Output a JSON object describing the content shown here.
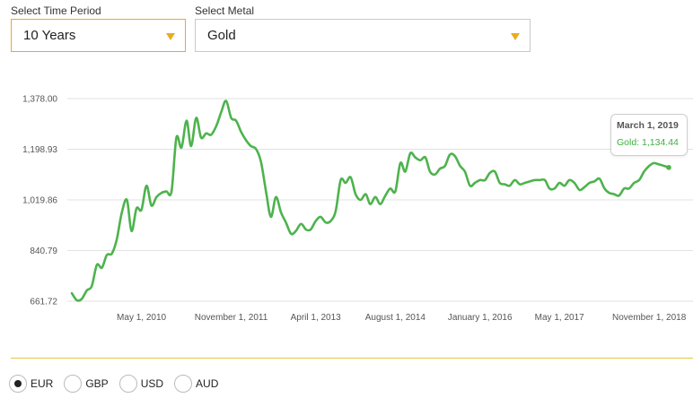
{
  "filters": {
    "period_label": "Select Time Period",
    "period_value": "10 Years",
    "metal_label": "Select Metal",
    "metal_value": "Gold"
  },
  "tooltip": {
    "date": "March 1, 2019",
    "value": "Gold: 1,134.44"
  },
  "currencies": [
    {
      "label": "EUR",
      "selected": true
    },
    {
      "label": "GBP",
      "selected": false
    },
    {
      "label": "USD",
      "selected": false
    },
    {
      "label": "AUD",
      "selected": false
    }
  ],
  "colors": {
    "accent": "#e8ad1e",
    "line": "#4db34d",
    "grid": "#e2e2e2"
  },
  "chart_data": {
    "type": "line",
    "title": "",
    "xlabel": "",
    "ylabel": "",
    "ylim": [
      661.72,
      1378.0
    ],
    "y_ticks": [
      "661.72",
      "840.79",
      "1,019.86",
      "1,198.93",
      "1,378.00"
    ],
    "y_tick_values": [
      661.72,
      840.79,
      1019.86,
      1198.93,
      1378.0
    ],
    "x_tick_labels": [
      "May 1, 2010",
      "November 1, 2011",
      "April 1, 2013",
      "August 1, 2014",
      "January 1, 2016",
      "May 1, 2017",
      "November 1, 2018"
    ],
    "x_tick_dates": [
      "2010-05-01",
      "2011-11-01",
      "2013-04-01",
      "2014-08-01",
      "2016-01-01",
      "2017-05-01",
      "2018-11-01"
    ],
    "grid": true,
    "series": [
      {
        "values": [
          [
            "2009-03-01",
            690
          ],
          [
            "2009-04-01",
            665
          ],
          [
            "2009-05-01",
            670
          ],
          [
            "2009-06-01",
            700
          ],
          [
            "2009-07-01",
            715
          ],
          [
            "2009-08-01",
            790
          ],
          [
            "2009-09-01",
            780
          ],
          [
            "2009-10-01",
            825
          ],
          [
            "2009-11-01",
            830
          ],
          [
            "2009-12-01",
            880
          ],
          [
            "2010-01-01",
            975
          ],
          [
            "2010-02-01",
            1020
          ],
          [
            "2010-03-01",
            910
          ],
          [
            "2010-04-01",
            990
          ],
          [
            "2010-05-01",
            985
          ],
          [
            "2010-06-01",
            1070
          ],
          [
            "2010-07-01",
            1000
          ],
          [
            "2010-08-01",
            1030
          ],
          [
            "2010-09-01",
            1045
          ],
          [
            "2010-10-01",
            1050
          ],
          [
            "2010-11-01",
            1050
          ],
          [
            "2010-12-01",
            1240
          ],
          [
            "2011-01-01",
            1205
          ],
          [
            "2011-02-01",
            1300
          ],
          [
            "2011-03-01",
            1210
          ],
          [
            "2011-04-01",
            1310
          ],
          [
            "2011-05-01",
            1240
          ],
          [
            "2011-06-01",
            1255
          ],
          [
            "2011-07-01",
            1250
          ],
          [
            "2011-08-01",
            1280
          ],
          [
            "2011-09-01",
            1330
          ],
          [
            "2011-10-01",
            1370
          ],
          [
            "2011-11-01",
            1310
          ],
          [
            "2011-12-01",
            1300
          ],
          [
            "2012-01-01",
            1260
          ],
          [
            "2012-02-01",
            1230
          ],
          [
            "2012-03-01",
            1210
          ],
          [
            "2012-04-01",
            1200
          ],
          [
            "2012-05-01",
            1155
          ],
          [
            "2012-06-01",
            1050
          ],
          [
            "2012-07-01",
            960
          ],
          [
            "2012-08-01",
            1030
          ],
          [
            "2012-09-01",
            975
          ],
          [
            "2012-10-01",
            940
          ],
          [
            "2012-11-01",
            900
          ],
          [
            "2012-12-01",
            910
          ],
          [
            "2013-01-01",
            935
          ],
          [
            "2013-02-01",
            915
          ],
          [
            "2013-03-01",
            915
          ],
          [
            "2013-04-01",
            945
          ],
          [
            "2013-05-01",
            960
          ],
          [
            "2013-06-01",
            940
          ],
          [
            "2013-07-01",
            945
          ],
          [
            "2013-08-01",
            980
          ],
          [
            "2013-09-01",
            1090
          ],
          [
            "2013-10-01",
            1080
          ],
          [
            "2013-11-01",
            1100
          ],
          [
            "2013-12-01",
            1040
          ],
          [
            "2014-01-01",
            1020
          ],
          [
            "2014-02-01",
            1040
          ],
          [
            "2014-03-01",
            1005
          ],
          [
            "2014-04-01",
            1030
          ],
          [
            "2014-05-01",
            1005
          ],
          [
            "2014-06-01",
            1035
          ],
          [
            "2014-07-01",
            1060
          ],
          [
            "2014-08-01",
            1050
          ],
          [
            "2014-09-01",
            1150
          ],
          [
            "2014-10-01",
            1120
          ],
          [
            "2014-11-01",
            1185
          ],
          [
            "2014-12-01",
            1170
          ],
          [
            "2015-01-01",
            1160
          ],
          [
            "2015-02-01",
            1170
          ],
          [
            "2015-03-01",
            1120
          ],
          [
            "2015-04-01",
            1110
          ],
          [
            "2015-05-01",
            1130
          ],
          [
            "2015-06-01",
            1140
          ],
          [
            "2015-07-01",
            1180
          ],
          [
            "2015-08-01",
            1175
          ],
          [
            "2015-09-01",
            1140
          ],
          [
            "2015-10-01",
            1120
          ],
          [
            "2015-11-01",
            1070
          ],
          [
            "2015-12-01",
            1080
          ],
          [
            "2016-01-01",
            1090
          ],
          [
            "2016-02-01",
            1090
          ],
          [
            "2016-03-01",
            1115
          ],
          [
            "2016-04-01",
            1120
          ],
          [
            "2016-05-01",
            1080
          ],
          [
            "2016-06-01",
            1075
          ],
          [
            "2016-07-01",
            1070
          ],
          [
            "2016-08-01",
            1090
          ],
          [
            "2016-09-01",
            1075
          ],
          [
            "2016-10-01",
            1080
          ],
          [
            "2016-11-01",
            1085
          ],
          [
            "2016-12-01",
            1090
          ],
          [
            "2017-01-01",
            1090
          ],
          [
            "2017-02-01",
            1090
          ],
          [
            "2017-03-01",
            1060
          ],
          [
            "2017-04-01",
            1060
          ],
          [
            "2017-05-01",
            1080
          ],
          [
            "2017-06-01",
            1070
          ],
          [
            "2017-07-01",
            1090
          ],
          [
            "2017-08-01",
            1080
          ],
          [
            "2017-09-01",
            1055
          ],
          [
            "2017-10-01",
            1065
          ],
          [
            "2017-11-01",
            1080
          ],
          [
            "2017-12-01",
            1085
          ],
          [
            "2018-01-01",
            1095
          ],
          [
            "2018-02-01",
            1060
          ],
          [
            "2018-03-01",
            1045
          ],
          [
            "2018-04-01",
            1040
          ],
          [
            "2018-05-01",
            1035
          ],
          [
            "2018-06-01",
            1060
          ],
          [
            "2018-07-01",
            1060
          ],
          [
            "2018-08-01",
            1080
          ],
          [
            "2018-09-01",
            1090
          ],
          [
            "2018-10-01",
            1120
          ],
          [
            "2018-11-01",
            1140
          ],
          [
            "2018-12-01",
            1150
          ],
          [
            "2019-01-01",
            1145
          ],
          [
            "2019-02-01",
            1140
          ],
          [
            "2019-03-01",
            1134.44
          ]
        ]
      }
    ]
  }
}
